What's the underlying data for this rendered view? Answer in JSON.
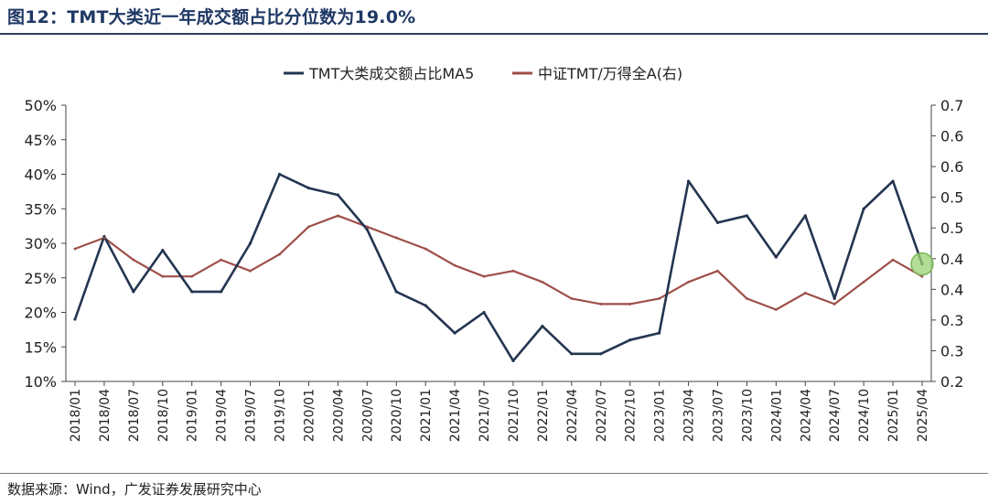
{
  "title": "图12：TMT大类近一年成交额占比分位数为19.0%",
  "source": "数据来源：Wind，广发证券发展研究中心",
  "chart_data": {
    "type": "line",
    "title": "图12：TMT大类近一年成交额占比分位数为19.0%",
    "x": [
      "2018/01",
      "2018/04",
      "2018/07",
      "2018/10",
      "2019/01",
      "2019/04",
      "2019/07",
      "2019/10",
      "2020/01",
      "2020/04",
      "2020/07",
      "2020/10",
      "2021/01",
      "2021/04",
      "2021/07",
      "2021/10",
      "2022/01",
      "2022/04",
      "2022/07",
      "2022/10",
      "2023/01",
      "2023/04",
      "2023/07",
      "2023/10",
      "2024/01",
      "2024/04",
      "2024/07",
      "2024/10",
      "2025/01",
      "2025/04"
    ],
    "x_tick_labels": [
      "2018/01",
      "2018/04",
      "2018/07",
      "2018/10",
      "2019/01",
      "2019/04",
      "2019/07",
      "2019/10",
      "2020/01",
      "2020/04",
      "2020/07",
      "2020/10",
      "2021/01",
      "2021/04",
      "2021/07",
      "2021/10",
      "2022/01",
      "2022/04",
      "2022/07",
      "2022/10",
      "2023/01",
      "2023/04",
      "2023/07",
      "2023/10",
      "2024/01",
      "2024/04",
      "2024/07",
      "2024/10",
      "2025/01",
      "2025/04"
    ],
    "series": [
      {
        "name": "TMT大类成交额占比MA5",
        "axis": "left",
        "color": "#243550",
        "values": [
          0.19,
          0.31,
          0.23,
          0.29,
          0.23,
          0.23,
          0.3,
          0.4,
          0.38,
          0.37,
          0.32,
          0.23,
          0.21,
          0.17,
          0.2,
          0.13,
          0.18,
          0.14,
          0.14,
          0.16,
          0.17,
          0.39,
          0.33,
          0.34,
          0.28,
          0.34,
          0.22,
          0.35,
          0.39,
          0.27
        ]
      },
      {
        "name": "中证TMT/万得全A(右)",
        "axis": "right",
        "color": "#9e4f49",
        "values": [
          0.44,
          0.46,
          0.42,
          0.39,
          0.39,
          0.42,
          0.4,
          0.43,
          0.48,
          0.5,
          0.48,
          0.46,
          0.44,
          0.41,
          0.39,
          0.4,
          0.38,
          0.35,
          0.34,
          0.34,
          0.35,
          0.38,
          0.4,
          0.35,
          0.33,
          0.36,
          0.34,
          0.38,
          0.42,
          0.39
        ]
      }
    ],
    "y_left": {
      "min": 0.1,
      "max": 0.5,
      "ticks": [
        "10%",
        "15%",
        "20%",
        "25%",
        "30%",
        "35%",
        "40%",
        "45%",
        "50%"
      ]
    },
    "y_right": {
      "min": 0.2,
      "max": 0.7,
      "ticks": [
        "0.2",
        "0.3",
        "0.3",
        "0.4",
        "0.4",
        "0.5",
        "0.5",
        "0.6",
        "0.6",
        "0.7"
      ]
    },
    "legend": {
      "position": "top-center",
      "entries": [
        "TMT大类成交额占比MA5",
        "中证TMT/万得全A(右)"
      ]
    },
    "annotation": "latest-point-highlight",
    "grid": false
  }
}
